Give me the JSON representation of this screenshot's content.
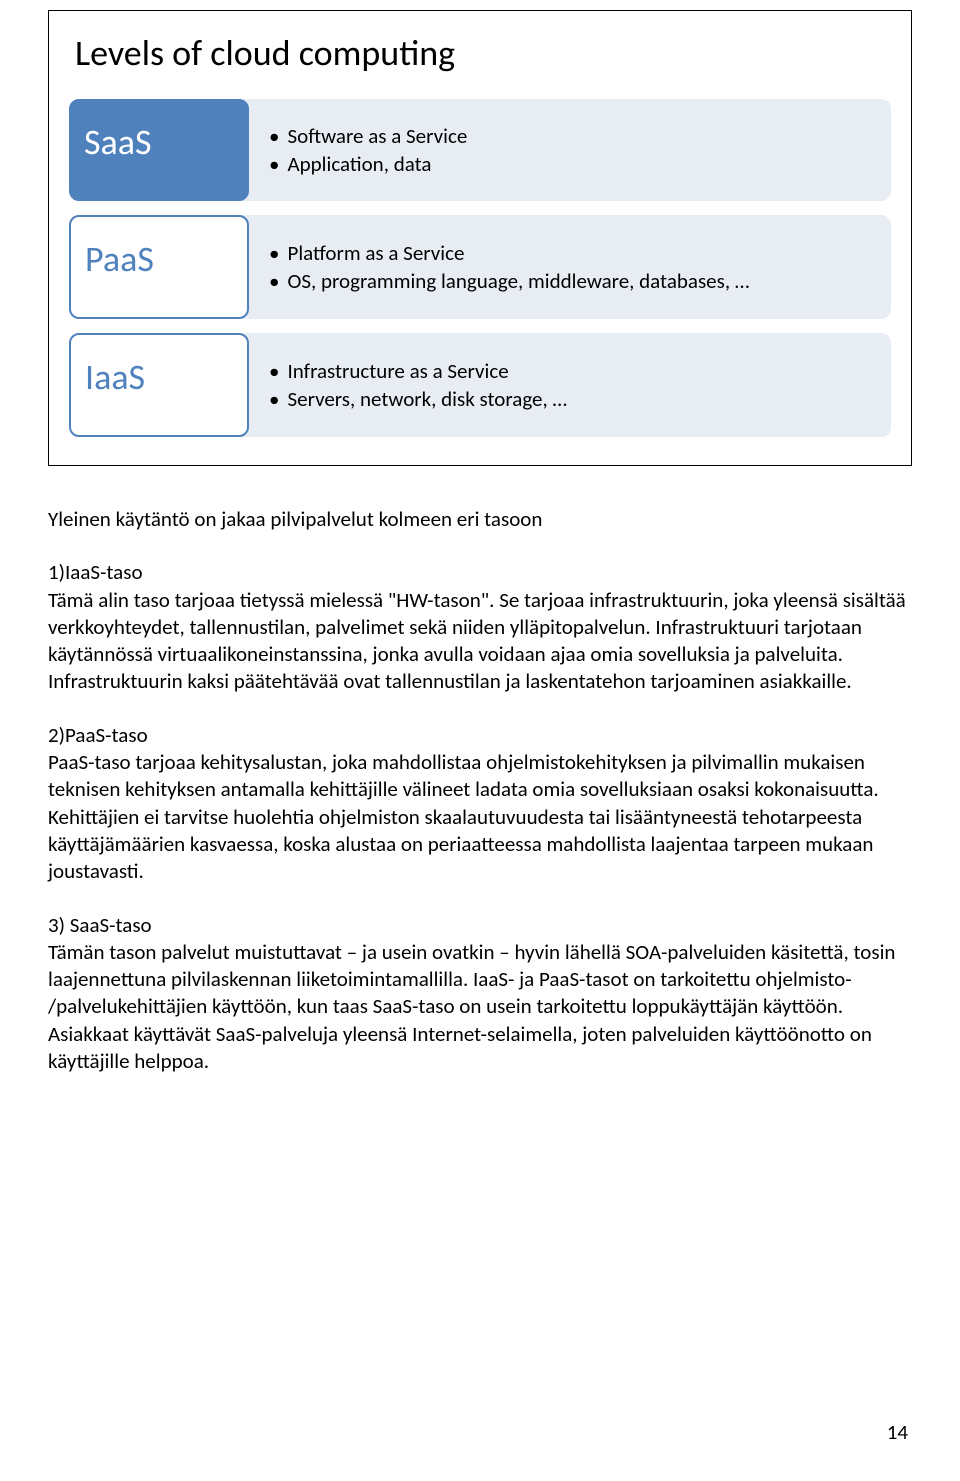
{
  "figure": {
    "title": "Levels of cloud computing",
    "title_fontsize": 36,
    "rows": [
      {
        "tab_label": "SaaS",
        "tab_style": "filled",
        "tab_bg": "#4f81bd",
        "tab_fg": "#ffffff",
        "lines": [
          "Software as a Service",
          "Application, data"
        ]
      },
      {
        "tab_label": "PaaS",
        "tab_style": "outlined",
        "tab_bg": "#ffffff",
        "tab_fg": "#4f81bd",
        "lines": [
          "Platform as a Service",
          "OS, programming language, middleware, databases, …"
        ]
      },
      {
        "tab_label": "IaaS",
        "tab_style": "outlined",
        "tab_bg": "#ffffff",
        "tab_fg": "#4f81bd",
        "lines": [
          "Infrastructure as a Service",
          "Servers, network, disk storage, …"
        ]
      }
    ],
    "desc_bg": "#e8edf4",
    "border_color": "#000000",
    "tab_fontsize": 36,
    "desc_fontsize": 21
  },
  "intro": "Yleinen käytäntö on jakaa pilvipalvelut kolmeen eri tasoon",
  "sections": [
    {
      "heading": "1)IaaS-taso",
      "body": "Tämä alin taso tarjoaa tietyssä mielessä \"HW-tason\". Se tarjoaa infrastruktuurin, joka yleensä sisältää verkkoyhteydet, tallennustilan, palvelimet sekä niiden ylläpitopalvelun. Infrastruktuuri tarjotaan käytännössä virtuaalikoneinstanssina, jonka avulla voidaan ajaa omia sovelluksia ja palveluita. Infrastruktuurin kaksi päätehtävää ovat tallennustilan ja laskentatehon tarjoaminen asiakkaille."
    },
    {
      "heading": "2)PaaS-taso",
      "body": "PaaS-taso tarjoaa kehitysalustan, joka mahdollistaa ohjelmistokehityksen ja pilvimallin mukaisen teknisen kehityksen antamalla kehittäjille välineet ladata omia sovelluksiaan osaksi kokonaisuutta. Kehittäjien ei tarvitse huolehtia ohjelmiston skaalautuvuudesta tai lisääntyneestä tehotarpeesta käyttäjämäärien kasvaessa, koska alustaa on periaatteessa mahdollista laajentaa tarpeen mukaan joustavasti."
    },
    {
      "heading": "3) SaaS-taso",
      "body": "Tämän tason palvelut muistuttavat – ja usein ovatkin – hyvin lähellä SOA-palveluiden käsitettä, tosin laajennettuna pilvilaskennan liiketoimintamallilla. IaaS- ja PaaS-tasot on tarkoitettu ohjelmisto- /palvelukehittäjien käyttöön, kun taas SaaS-taso on usein tarkoitettu loppukäyttäjän käyttöön. Asiakkaat käyttävät SaaS-palveluja yleensä Internet-selaimella, joten palveluiden käyttöönotto on käyttäjille helppoa."
    }
  ],
  "page_number": "14",
  "body_fontsize": 21,
  "background_color": "#ffffff"
}
